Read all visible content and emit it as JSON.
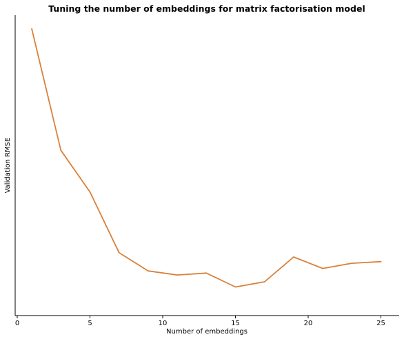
{
  "chart_data": {
    "type": "line",
    "title": "Tuning the number of embeddings for matrix factorisation model",
    "xlabel": "Number of embeddings",
    "ylabel": "Validation RMSE",
    "x": [
      1,
      3,
      5,
      7,
      9,
      11,
      13,
      15,
      17,
      19,
      21,
      23,
      25
    ],
    "series": [
      {
        "color": "#d9803a",
        "values": [
          1.0,
          0.554,
          0.401,
          0.178,
          0.111,
          0.096,
          0.103,
          0.052,
          0.071,
          0.162,
          0.12,
          0.139,
          0.145
        ]
      }
    ],
    "xlim": [
      0,
      26.2
    ],
    "ylim": [
      0,
      1.05
    ],
    "xticks": [
      0,
      5,
      10,
      15,
      20,
      25
    ],
    "yticks": [],
    "grid": false,
    "legend": "none",
    "spines": [
      "left",
      "bottom"
    ]
  }
}
